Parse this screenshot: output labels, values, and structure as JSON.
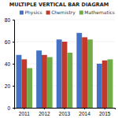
{
  "chart_data": {
    "type": "bar",
    "title": "MULTIPLE VERTICAL BAR DIAGRAM",
    "categories": [
      "2011",
      "2012",
      "2013",
      "2014",
      "2015"
    ],
    "series": [
      {
        "name": "Physics",
        "color": "#4472C4",
        "values": [
          48,
          52,
          62,
          68,
          40
        ]
      },
      {
        "name": "Chemistry",
        "color": "#C0392B",
        "values": [
          44,
          48,
          60,
          64,
          43
        ]
      },
      {
        "name": "Mathematics",
        "color": "#70AD47",
        "values": [
          36,
          46,
          50,
          62,
          44
        ]
      }
    ],
    "ylim": [
      0,
      80
    ],
    "yticks": [
      0,
      20,
      40,
      60,
      80
    ],
    "grid": true,
    "legend": "upper right"
  }
}
